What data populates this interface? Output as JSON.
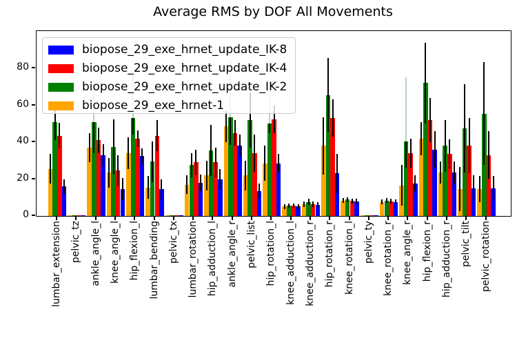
{
  "title": "Average RMS by DOF All Movements",
  "chart_data": {
    "type": "bar",
    "title": "Average RMS by DOF All Movements",
    "xlabel": "",
    "ylabel": "",
    "y_ticks": [
      0,
      20,
      40,
      60,
      80
    ],
    "ylim": [
      0,
      100.2
    ],
    "grid": false,
    "legend_position": "upper left",
    "bar_plot_order_left_to_right": [
      "biopose_29_exe_hrnet-1",
      "biopose_29_exe_hrnet_update_IK-2",
      "biopose_29_exe_hrnet_update_IK-4",
      "biopose_29_exe_hrnet_update_IK-8"
    ],
    "categories": [
      "lumbar_extension",
      "pelvic_tz",
      "ankle_angle_l",
      "knee_angle_l",
      "hip_flexion_l",
      "lumbar_bending",
      "pelvic_tx",
      "lumbar_rotation",
      "hip_adduction_l",
      "ankle_angle_r",
      "pelvic_list",
      "hip_rotation_l",
      "knee_adduction_l",
      "knee_adduction_r",
      "hip_rotation_r",
      "knee_rotation_l",
      "pelvic_ty",
      "knee_rotation_r",
      "knee_angle_r",
      "hip_flexion_r",
      "hip_adduction_r",
      "pelvic_tilt",
      "pelvic_rotation"
    ],
    "series": [
      {
        "name": "biopose_29_exe_hrnet_update_IK-8",
        "color": "#0000ff",
        "values": [
          16,
          0.3,
          33,
          14.5,
          32.5,
          14.5,
          0.3,
          18,
          20,
          38,
          13.5,
          28.5,
          5.1,
          6.0,
          23,
          8.0,
          0.3,
          7.6,
          17.5,
          36,
          23.5,
          15,
          15
        ],
        "errors": [
          4,
          0.2,
          6,
          6,
          4,
          5.5,
          0.2,
          4.5,
          5.5,
          6,
          4,
          5,
          1.2,
          1.6,
          10.5,
          1.3,
          0.2,
          1.4,
          4.5,
          10,
          6,
          7,
          6.5
        ]
      },
      {
        "name": "biopose_29_exe_hrnet_update_IK-4",
        "color": "#ff0000",
        "values": [
          43.5,
          0.3,
          41,
          24.5,
          42,
          43.5,
          0.3,
          29,
          29,
          45,
          34,
          52.5,
          5.5,
          6.4,
          53,
          8.2,
          0.3,
          8.0,
          34,
          52,
          33.5,
          38,
          33
        ],
        "errors": [
          7,
          0.2,
          7,
          8.5,
          4.5,
          8.5,
          0.2,
          7,
          8,
          7,
          10,
          7.5,
          1.2,
          1.6,
          10,
          1.3,
          0.2,
          1.4,
          8,
          12,
          8,
          15,
          13
        ]
      },
      {
        "name": "biopose_29_exe_hrnet_update_IK-2",
        "color": "#008000",
        "values": [
          51,
          0.3,
          51,
          37.5,
          53,
          29.5,
          0.3,
          27.5,
          35.5,
          53.5,
          52,
          50,
          5.7,
          7.6,
          65.5,
          8.8,
          0.3,
          8.4,
          40.5,
          72,
          38,
          47.5,
          55.5
        ],
        "errors": [
          10,
          0.2,
          17,
          15,
          9,
          11,
          0.2,
          6.5,
          14,
          15,
          15,
          5,
          1.2,
          1.6,
          20,
          1.3,
          0.2,
          1.4,
          14.5,
          22,
          14,
          24,
          28
        ]
      },
      {
        "name": "biopose_29_exe_hrnet-1",
        "color": "#ffa500",
        "values": [
          25.5,
          0.3,
          37,
          23.5,
          34,
          15.5,
          0.3,
          17,
          22,
          48.5,
          22,
          28.5,
          5.1,
          6.4,
          38,
          8.4,
          0.3,
          7.6,
          16.5,
          42,
          23.5,
          14.5,
          14.5
        ],
        "errors": [
          8,
          0.2,
          8,
          8,
          8.5,
          6,
          0.2,
          5,
          8,
          8.5,
          8,
          9.5,
          1.2,
          1.6,
          15.5,
          1.3,
          0.2,
          1.4,
          11,
          9,
          6,
          12,
          7
        ]
      }
    ],
    "pale_whisker_tops": [
      null,
      null,
      72,
      null,
      76,
      null,
      null,
      null,
      null,
      85,
      null,
      68,
      null,
      null,
      null,
      null,
      null,
      null,
      75,
      null,
      null,
      null,
      null
    ]
  }
}
